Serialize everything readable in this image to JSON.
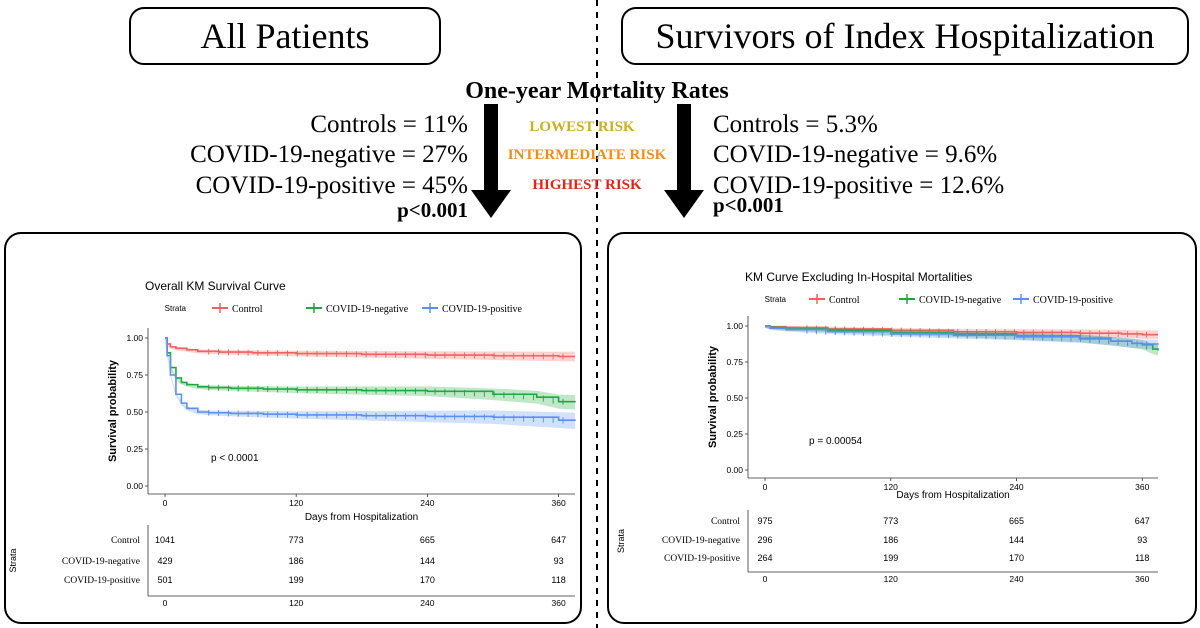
{
  "header": {
    "left_title": "All Patients",
    "right_title": "Survivors of Index Hospitalization",
    "center_title": "One-year Mortality Rates",
    "risk_labels": [
      "LOWEST RISK",
      "INTERMEDIATE RISK",
      "HIGHEST RISK"
    ],
    "left_rates": [
      "Controls = 11%",
      "COVID-19-negative = 27%",
      "COVID-19-positive = 45%"
    ],
    "left_p": "p<0.001",
    "right_rates": [
      "Controls = 5.3%",
      "COVID-19-negative = 9.6%",
      "COVID-19-positive = 12.6%"
    ],
    "right_p": "p<0.001"
  },
  "colors": {
    "control": "#f0625f",
    "negative": "#1fa83e",
    "positive": "#5b8ff0",
    "lowest": "#c9b01c",
    "intermediate": "#f08c1a",
    "highest": "#e8211e"
  },
  "chart_data": [
    {
      "type": "line",
      "title": "Overall KM Survival Curve",
      "legend_title": "Strata",
      "legend_position": "top",
      "xlabel": "Days from Hospitalization",
      "ylabel": "Survival probability",
      "xlim": [
        0,
        375
      ],
      "ylim": [
        0,
        1
      ],
      "xticks": [
        0,
        120,
        240,
        360
      ],
      "yticks": [
        0,
        0.25,
        0.5,
        0.75,
        1.0
      ],
      "ytick_labels": [
        "0.00",
        "0.25",
        "0.50",
        "0.75",
        "1.00"
      ],
      "annotation": "p < 0.0001",
      "series": [
        {
          "name": "Control",
          "key": "control",
          "x": [
            0,
            2,
            5,
            10,
            20,
            30,
            50,
            80,
            120,
            180,
            240,
            300,
            360,
            375
          ],
          "y": [
            1.0,
            0.96,
            0.94,
            0.93,
            0.92,
            0.91,
            0.905,
            0.9,
            0.895,
            0.89,
            0.885,
            0.88,
            0.875,
            0.875
          ]
        },
        {
          "name": "COVID-19-negative",
          "key": "negative",
          "x": [
            0,
            2,
            5,
            10,
            15,
            20,
            30,
            40,
            60,
            90,
            120,
            180,
            240,
            300,
            340,
            360,
            375
          ],
          "y": [
            1.0,
            0.9,
            0.8,
            0.73,
            0.7,
            0.685,
            0.67,
            0.665,
            0.66,
            0.655,
            0.65,
            0.645,
            0.64,
            0.62,
            0.6,
            0.57,
            0.565
          ]
        },
        {
          "name": "COVID-19-positive",
          "key": "positive",
          "x": [
            0,
            2,
            5,
            10,
            15,
            20,
            30,
            40,
            60,
            90,
            120,
            180,
            240,
            300,
            360,
            375
          ],
          "y": [
            1.0,
            0.88,
            0.75,
            0.62,
            0.56,
            0.525,
            0.5,
            0.495,
            0.49,
            0.485,
            0.48,
            0.475,
            0.47,
            0.465,
            0.445,
            0.44
          ]
        }
      ],
      "risk_table": {
        "title": "Strata",
        "rows": [
          "Control",
          "COVID-19-negative",
          "COVID-19-positive"
        ],
        "x": [
          0,
          120,
          240,
          360
        ],
        "values": [
          [
            "1041",
            "773",
            "665",
            "647"
          ],
          [
            "429",
            "186",
            "144",
            "93"
          ],
          [
            "501",
            "199",
            "170",
            "118"
          ]
        ]
      }
    },
    {
      "type": "line",
      "title": "KM Curve Excluding In-Hospital Mortalities",
      "legend_title": "Strata",
      "legend_position": "top",
      "xlabel": "Days from Hospitalization",
      "ylabel": "Survival probability",
      "xlim": [
        0,
        375
      ],
      "ylim": [
        0,
        1
      ],
      "xticks": [
        0,
        120,
        240,
        360
      ],
      "yticks": [
        0,
        0.25,
        0.5,
        0.75,
        1.0
      ],
      "ytick_labels": [
        "0.00",
        "0.25",
        "0.50",
        "0.75",
        "1.00"
      ],
      "annotation": "p = 0.00054",
      "series": [
        {
          "name": "Control",
          "key": "control",
          "x": [
            0,
            5,
            20,
            60,
            120,
            180,
            240,
            300,
            340,
            360,
            375
          ],
          "y": [
            1.0,
            0.995,
            0.99,
            0.98,
            0.97,
            0.96,
            0.955,
            0.95,
            0.945,
            0.94,
            0.94
          ]
        },
        {
          "name": "COVID-19-negative",
          "key": "negative",
          "x": [
            0,
            5,
            20,
            60,
            120,
            180,
            240,
            300,
            330,
            350,
            360,
            370,
            375
          ],
          "y": [
            1.0,
            0.99,
            0.98,
            0.97,
            0.955,
            0.945,
            0.93,
            0.915,
            0.895,
            0.88,
            0.87,
            0.84,
            0.83
          ]
        },
        {
          "name": "COVID-19-positive",
          "key": "positive",
          "x": [
            0,
            5,
            20,
            60,
            120,
            180,
            240,
            300,
            330,
            350,
            360,
            375
          ],
          "y": [
            1.0,
            0.985,
            0.975,
            0.96,
            0.945,
            0.935,
            0.925,
            0.91,
            0.895,
            0.88,
            0.875,
            0.87
          ]
        }
      ],
      "risk_table": {
        "title": "Strata",
        "rows": [
          "Control",
          "COVID-19-negative",
          "COVID-19-positive"
        ],
        "x": [
          0,
          120,
          240,
          360
        ],
        "values": [
          [
            "975",
            "773",
            "665",
            "647"
          ],
          [
            "296",
            "186",
            "144",
            "93"
          ],
          [
            "264",
            "199",
            "170",
            "118"
          ]
        ]
      }
    }
  ]
}
